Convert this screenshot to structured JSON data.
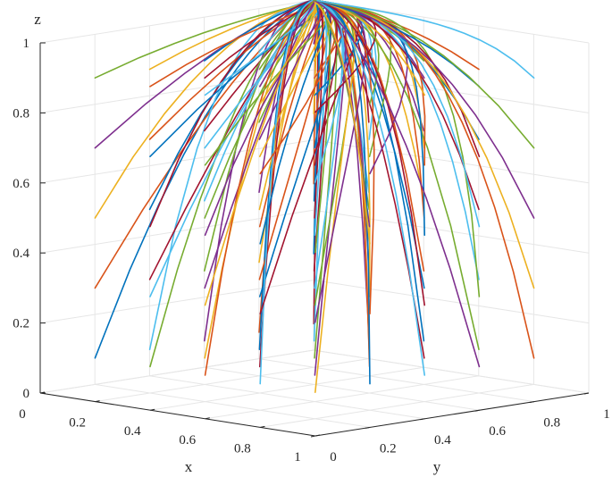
{
  "chart_data": {
    "type": "line",
    "subtype": "3d-trajectories",
    "title": "",
    "xlabel": "x",
    "ylabel": "y",
    "zlabel": "z",
    "xlim": [
      0,
      1
    ],
    "ylim": [
      0,
      1
    ],
    "zlim": [
      0,
      1
    ],
    "x_ticks": [
      "0",
      "0.2",
      "0.4",
      "0.6",
      "0.8",
      "1"
    ],
    "y_ticks": [
      "0",
      "0.2",
      "0.4",
      "0.6",
      "0.8",
      "1"
    ],
    "z_ticks": [
      "0",
      "0.2",
      "0.4",
      "0.6",
      "0.8",
      "1"
    ],
    "grid": true,
    "convergence_point": {
      "x": 0,
      "y": 1,
      "z": 1
    },
    "initial_grid": {
      "x0": [
        0.1,
        0.3,
        0.5,
        0.7,
        0.9
      ],
      "y0": [
        0.1,
        0.3,
        0.5,
        0.7,
        0.9
      ],
      "z0": [
        0.1,
        0.3,
        0.5,
        0.7,
        0.9
      ]
    },
    "series_colors": [
      "#0072BD",
      "#D95319",
      "#EDB120",
      "#7E2F8E",
      "#77AC30",
      "#4DBEEE",
      "#A2142F"
    ]
  }
}
